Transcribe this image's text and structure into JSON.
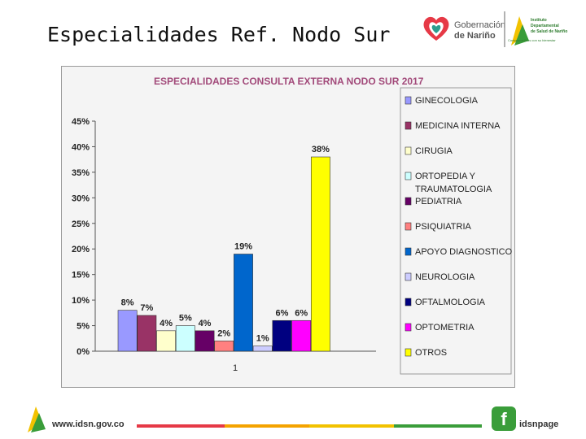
{
  "slide": {
    "title": "Especialidades Ref. Nodo Sur"
  },
  "header_logos": {
    "gob_line1": "Gobernación",
    "gob_line2": "de Nariño",
    "ids_line1": "Instituto",
    "ids_line2": "Departamental",
    "ids_line3": "de Salud de Nariño",
    "ids_line4": "Comprometidos con su bienestar"
  },
  "footer": {
    "url": "www.idsn.gov.co",
    "social": "idsnpage"
  },
  "colors": {
    "ginecologia": "#9999ff",
    "medicina_interna": "#993366",
    "cirugia": "#ffffcc",
    "ortopedia": "#ccffff",
    "pediatria": "#660066",
    "psiquiatria": "#ff8080",
    "apoyo": "#0066cc",
    "neurologia": "#ccccff",
    "oftalmologia": "#000080",
    "optometria": "#ff00ff",
    "otros": "#ffff00"
  },
  "chart_data": {
    "type": "bar",
    "title": "ESPECIALIDADES CONSULTA EXTERNA NODO SUR 2017",
    "categories": [
      "1"
    ],
    "ylim": [
      0,
      45
    ],
    "yticks": [
      0,
      5,
      10,
      15,
      20,
      25,
      30,
      35,
      40,
      45
    ],
    "ytick_labels": [
      "0%",
      "5%",
      "10%",
      "15%",
      "20%",
      "25%",
      "30%",
      "35%",
      "40%",
      "45%"
    ],
    "legend_position": "right",
    "grid": false,
    "series": [
      {
        "name": "GINECOLOGIA",
        "values": [
          8
        ],
        "label": "8%",
        "color": "#9999ff"
      },
      {
        "name": "MEDICINA  INTERNA",
        "values": [
          7
        ],
        "label": "7%",
        "color": "#993366"
      },
      {
        "name": "CIRUGIA",
        "values": [
          4
        ],
        "label": "4%",
        "color": "#ffffcc"
      },
      {
        "name": "ORTOPEDIA  Y TRAUMATOLOGIA",
        "legend_lines": [
          "ORTOPEDIA  Y",
          "TRAUMATOLOGIA"
        ],
        "values": [
          5
        ],
        "label": "5%",
        "color": "#ccffff"
      },
      {
        "name": "PEDIATRIA",
        "values": [
          4
        ],
        "label": "4%",
        "color": "#660066"
      },
      {
        "name": "PSIQUIATRIA",
        "values": [
          2
        ],
        "label": "2%",
        "color": "#ff8080"
      },
      {
        "name": "APOYO DIAGNOSTICO",
        "values": [
          19
        ],
        "label": "19%",
        "color": "#0066cc"
      },
      {
        "name": "NEUROLOGIA",
        "values": [
          1
        ],
        "label": "1%",
        "color": "#ccccff"
      },
      {
        "name": "OFTALMOLOGIA",
        "values": [
          6
        ],
        "label": "6%",
        "color": "#000080"
      },
      {
        "name": "OPTOMETRIA",
        "values": [
          6
        ],
        "label": "6%",
        "color": "#ff00ff"
      },
      {
        "name": "OTROS",
        "values": [
          38
        ],
        "label": "38%",
        "color": "#ffff00"
      }
    ]
  }
}
